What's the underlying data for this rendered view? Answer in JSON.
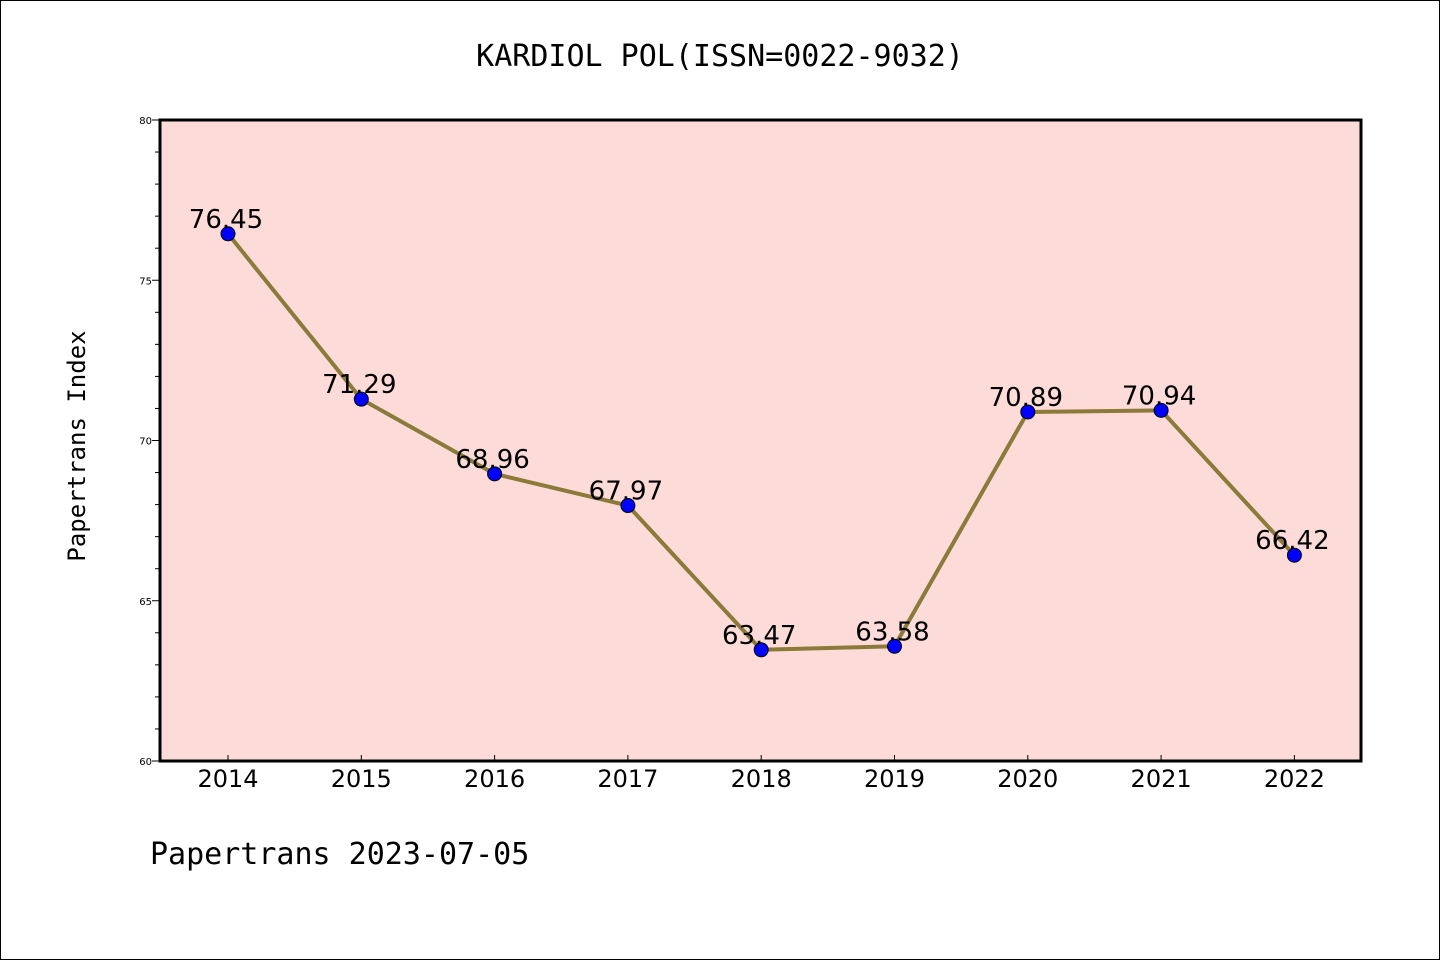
{
  "chart_data": {
    "type": "line",
    "title": "KARDIOL POL(ISSN=0022-9032)",
    "ylabel": "Papertrans Index",
    "xlabel": "",
    "footer": "Papertrans 2023-07-05",
    "categories": [
      "2014",
      "2015",
      "2016",
      "2017",
      "2018",
      "2019",
      "2020",
      "2021",
      "2022"
    ],
    "values": [
      76.45,
      71.29,
      68.96,
      67.97,
      63.47,
      63.58,
      70.89,
      70.94,
      66.42
    ],
    "data_labels": [
      "76.45",
      "71.29",
      "68.96",
      "67.97",
      "63.47",
      "63.58",
      "70.89",
      "70.94",
      "66.42"
    ],
    "ylim": [
      60,
      80
    ],
    "yticks": [
      "60",
      "65",
      "70",
      "75",
      "80"
    ],
    "grid": false,
    "colors": {
      "plot_background": "#fddbd8",
      "line": "#8b7a3a",
      "marker": "#0000ff"
    }
  }
}
